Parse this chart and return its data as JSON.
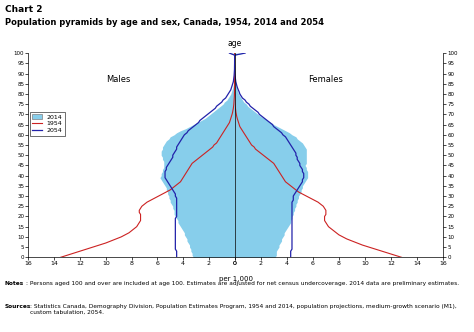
{
  "title_line1": "Chart 2",
  "title_line2": "Population pyramids by age and sex, Canada, 1954, 2014 and 2054",
  "age_label": "age",
  "xlabel": "per 1,000",
  "males_label": "Males",
  "females_label": "Females",
  "legend_2014": "2014",
  "legend_1954": "1954",
  "legend_2054": "2054",
  "color_2014_fill": "#87CEEB",
  "color_1954": "#cc2222",
  "color_2054": "#2222aa",
  "xlim": 16,
  "ages": [
    0,
    1,
    2,
    3,
    4,
    5,
    6,
    7,
    8,
    9,
    10,
    11,
    12,
    13,
    14,
    15,
    16,
    17,
    18,
    19,
    20,
    21,
    22,
    23,
    24,
    25,
    26,
    27,
    28,
    29,
    30,
    31,
    32,
    33,
    34,
    35,
    36,
    37,
    38,
    39,
    40,
    41,
    42,
    43,
    44,
    45,
    46,
    47,
    48,
    49,
    50,
    51,
    52,
    53,
    54,
    55,
    56,
    57,
    58,
    59,
    60,
    61,
    62,
    63,
    64,
    65,
    66,
    67,
    68,
    69,
    70,
    71,
    72,
    73,
    74,
    75,
    76,
    77,
    78,
    79,
    80,
    81,
    82,
    83,
    84,
    85,
    86,
    87,
    88,
    89,
    90,
    91,
    92,
    93,
    94,
    95,
    96,
    97,
    98,
    99,
    100
  ],
  "male_2014": [
    3.2,
    3.3,
    3.3,
    3.4,
    3.4,
    3.5,
    3.5,
    3.6,
    3.7,
    3.7,
    3.8,
    3.9,
    3.9,
    4.0,
    4.1,
    4.2,
    4.3,
    4.4,
    4.4,
    4.5,
    4.6,
    4.7,
    4.7,
    4.7,
    4.8,
    4.8,
    4.9,
    5.0,
    5.0,
    5.1,
    5.1,
    5.2,
    5.2,
    5.3,
    5.3,
    5.4,
    5.5,
    5.6,
    5.7,
    5.8,
    5.7,
    5.7,
    5.6,
    5.6,
    5.5,
    5.5,
    5.5,
    5.5,
    5.6,
    5.6,
    5.7,
    5.7,
    5.7,
    5.6,
    5.6,
    5.5,
    5.4,
    5.3,
    5.1,
    5.0,
    4.7,
    4.5,
    4.2,
    3.8,
    3.5,
    3.2,
    2.9,
    2.6,
    2.3,
    2.1,
    1.9,
    1.7,
    1.5,
    1.3,
    1.1,
    0.9,
    0.8,
    0.6,
    0.5,
    0.4,
    0.3,
    0.25,
    0.2,
    0.15,
    0.12,
    0.09,
    0.07,
    0.05,
    0.04,
    0.03,
    0.02,
    0.01,
    0.01,
    0.005,
    0.003,
    0.002,
    0.001,
    0.001,
    0.0,
    0.0,
    0.4
  ],
  "female_2014": [
    3.1,
    3.2,
    3.2,
    3.2,
    3.3,
    3.4,
    3.4,
    3.5,
    3.6,
    3.6,
    3.7,
    3.8,
    3.8,
    3.9,
    4.0,
    4.1,
    4.2,
    4.3,
    4.3,
    4.4,
    4.4,
    4.5,
    4.5,
    4.6,
    4.6,
    4.7,
    4.7,
    4.8,
    4.8,
    4.9,
    4.9,
    5.0,
    5.1,
    5.1,
    5.2,
    5.2,
    5.3,
    5.4,
    5.5,
    5.6,
    5.6,
    5.6,
    5.6,
    5.5,
    5.5,
    5.4,
    5.5,
    5.5,
    5.5,
    5.5,
    5.5,
    5.5,
    5.5,
    5.5,
    5.4,
    5.3,
    5.2,
    5.0,
    4.8,
    4.7,
    4.4,
    4.2,
    3.9,
    3.6,
    3.3,
    3.0,
    2.8,
    2.5,
    2.3,
    2.0,
    1.8,
    1.6,
    1.4,
    1.2,
    1.0,
    0.9,
    0.7,
    0.6,
    0.5,
    0.4,
    0.3,
    0.25,
    0.2,
    0.15,
    0.12,
    0.1,
    0.07,
    0.05,
    0.04,
    0.03,
    0.02,
    0.015,
    0.01,
    0.007,
    0.005,
    0.003,
    0.002,
    0.001,
    0.001,
    0.0,
    0.7
  ],
  "male_1954": [
    13.5,
    13.0,
    12.5,
    12.0,
    11.5,
    11.0,
    10.5,
    10.0,
    9.6,
    9.2,
    8.8,
    8.5,
    8.2,
    8.0,
    7.8,
    7.6,
    7.5,
    7.4,
    7.3,
    7.3,
    7.3,
    7.3,
    7.4,
    7.4,
    7.3,
    7.2,
    7.0,
    6.8,
    6.5,
    6.2,
    5.9,
    5.6,
    5.3,
    5.0,
    4.8,
    4.6,
    4.4,
    4.2,
    4.1,
    4.0,
    3.9,
    3.8,
    3.7,
    3.6,
    3.5,
    3.4,
    3.3,
    3.1,
    2.9,
    2.7,
    2.5,
    2.3,
    2.1,
    1.9,
    1.7,
    1.6,
    1.4,
    1.3,
    1.2,
    1.1,
    1.0,
    0.9,
    0.8,
    0.7,
    0.6,
    0.5,
    0.4,
    0.35,
    0.3,
    0.25,
    0.2,
    0.16,
    0.13,
    0.1,
    0.08,
    0.06,
    0.05,
    0.04,
    0.03,
    0.02,
    0.015,
    0.01,
    0.008,
    0.006,
    0.004,
    0.003,
    0.002,
    0.001,
    0.001,
    0.0,
    0.0,
    0.0,
    0.0,
    0.0,
    0.0,
    0.0,
    0.0,
    0.0,
    0.0,
    0.0,
    0.0
  ],
  "female_1954": [
    12.8,
    12.3,
    11.8,
    11.3,
    10.8,
    10.3,
    9.8,
    9.4,
    9.0,
    8.6,
    8.3,
    8.0,
    7.8,
    7.6,
    7.4,
    7.2,
    7.1,
    7.0,
    6.9,
    6.9,
    6.9,
    7.0,
    7.0,
    7.0,
    6.9,
    6.8,
    6.6,
    6.4,
    6.1,
    5.8,
    5.5,
    5.2,
    4.9,
    4.7,
    4.5,
    4.3,
    4.1,
    3.9,
    3.8,
    3.7,
    3.6,
    3.5,
    3.4,
    3.3,
    3.2,
    3.1,
    3.0,
    2.8,
    2.6,
    2.4,
    2.2,
    2.0,
    1.8,
    1.6,
    1.5,
    1.3,
    1.2,
    1.1,
    1.0,
    0.9,
    0.8,
    0.7,
    0.6,
    0.5,
    0.4,
    0.35,
    0.3,
    0.25,
    0.2,
    0.16,
    0.13,
    0.1,
    0.08,
    0.06,
    0.04,
    0.03,
    0.02,
    0.015,
    0.01,
    0.008,
    0.006,
    0.004,
    0.003,
    0.002,
    0.001,
    0.0,
    0.0,
    0.0,
    0.0,
    0.0,
    0.0,
    0.0,
    0.0,
    0.0,
    0.0,
    0.0,
    0.0,
    0.0,
    0.0,
    0.0,
    0.0
  ],
  "male_2054": [
    4.5,
    4.5,
    4.5,
    4.5,
    4.6,
    4.6,
    4.6,
    4.6,
    4.6,
    4.6,
    4.6,
    4.6,
    4.6,
    4.6,
    4.6,
    4.6,
    4.6,
    4.6,
    4.6,
    4.6,
    4.5,
    4.5,
    4.5,
    4.5,
    4.5,
    4.5,
    4.5,
    4.5,
    4.5,
    4.5,
    4.6,
    4.6,
    4.7,
    4.8,
    4.9,
    5.0,
    5.1,
    5.2,
    5.3,
    5.4,
    5.4,
    5.4,
    5.4,
    5.3,
    5.3,
    5.2,
    5.1,
    5.0,
    4.9,
    4.8,
    4.8,
    4.7,
    4.6,
    4.5,
    4.5,
    4.4,
    4.3,
    4.2,
    4.1,
    4.0,
    3.9,
    3.7,
    3.6,
    3.4,
    3.2,
    3.0,
    2.8,
    2.7,
    2.5,
    2.3,
    2.1,
    1.9,
    1.7,
    1.5,
    1.4,
    1.2,
    1.0,
    0.9,
    0.7,
    0.6,
    0.5,
    0.4,
    0.3,
    0.25,
    0.2,
    0.15,
    0.1,
    0.08,
    0.06,
    0.04,
    0.03,
    0.02,
    0.01,
    0.008,
    0.005,
    0.003,
    0.002,
    0.001,
    0.0,
    0.0,
    0.4
  ],
  "female_2054": [
    4.3,
    4.3,
    4.3,
    4.3,
    4.4,
    4.4,
    4.4,
    4.4,
    4.4,
    4.4,
    4.4,
    4.4,
    4.4,
    4.4,
    4.4,
    4.4,
    4.4,
    4.4,
    4.4,
    4.4,
    4.4,
    4.4,
    4.4,
    4.4,
    4.4,
    4.4,
    4.4,
    4.4,
    4.5,
    4.5,
    4.5,
    4.6,
    4.7,
    4.8,
    4.9,
    5.0,
    5.1,
    5.2,
    5.2,
    5.3,
    5.3,
    5.3,
    5.2,
    5.2,
    5.1,
    5.0,
    5.0,
    4.9,
    4.8,
    4.8,
    4.7,
    4.7,
    4.6,
    4.5,
    4.4,
    4.3,
    4.2,
    4.1,
    4.0,
    3.9,
    3.7,
    3.6,
    3.4,
    3.2,
    3.0,
    2.9,
    2.7,
    2.5,
    2.3,
    2.1,
    1.9,
    1.8,
    1.6,
    1.4,
    1.2,
    1.1,
    0.9,
    0.8,
    0.6,
    0.5,
    0.4,
    0.35,
    0.28,
    0.22,
    0.17,
    0.13,
    0.09,
    0.07,
    0.05,
    0.03,
    0.02,
    0.015,
    0.01,
    0.007,
    0.005,
    0.003,
    0.002,
    0.001,
    0.0,
    0.0,
    0.8
  ],
  "notes_bold": "Notes",
  "notes_rest": ": Persons aged 100 and over are included at age 100. Estimates are adjusted for net census undercoverage. 2014 data are preliminary estimates.",
  "sources_bold": "Sources",
  "sources_rest": ": Statistics Canada, Demography Division, Population Estimates Program, 1954 and 2014, population projections, medium-growth scenario (M1), custom tabulation, 2054."
}
